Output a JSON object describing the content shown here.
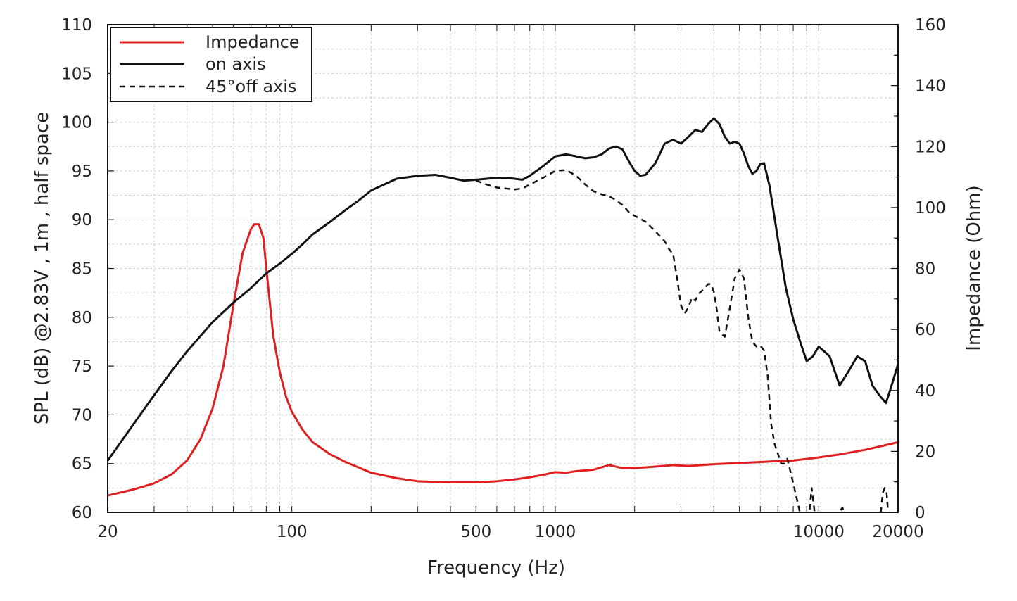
{
  "chart_data": {
    "type": "line",
    "xlabel": "Frequency (Hz)",
    "ylabel_left": "SPL (dB) @2.83V , 1m , half space",
    "ylabel_right": "Impedance (Ohm)",
    "x_scale": "log",
    "xlim": [
      20,
      20000
    ],
    "ylim_left": [
      60,
      110
    ],
    "ylim_right": [
      0,
      160
    ],
    "x_ticks": [
      20,
      100,
      500,
      1000,
      10000,
      20000
    ],
    "x_tick_labels": [
      "20",
      "100",
      "500",
      "1000",
      "10000",
      "20000"
    ],
    "y_ticks_left": [
      60,
      65,
      70,
      75,
      80,
      85,
      90,
      95,
      100,
      105,
      110
    ],
    "y_tick_labels_left": [
      "60",
      "65",
      "70",
      "75",
      "80",
      "85",
      "90",
      "95",
      "100",
      "105",
      "110"
    ],
    "y_ticks_right": [
      0,
      20,
      40,
      60,
      80,
      100,
      120,
      140,
      160
    ],
    "y_tick_labels_right": [
      "0",
      "20",
      "40",
      "60",
      "80",
      "100",
      "120",
      "140",
      "160"
    ],
    "grid": true,
    "legend_position": "top-left",
    "series": [
      {
        "name": "Impedance",
        "axis": "right",
        "color": "#e02020",
        "style": "solid",
        "x": [
          20,
          25,
          30,
          35,
          40,
          45,
          50,
          55,
          60,
          65,
          70,
          72,
          75,
          78,
          80,
          85,
          90,
          95,
          100,
          110,
          120,
          140,
          160,
          200,
          250,
          300,
          400,
          500,
          600,
          700,
          800,
          900,
          1000,
          1100,
          1200,
          1400,
          1600,
          1800,
          2000,
          2400,
          2800,
          3200,
          4000,
          5000,
          6000,
          7000,
          8000,
          10000,
          12000,
          15000,
          20000
        ],
        "y": [
          5.5,
          7.5,
          9.5,
          12.5,
          17,
          24,
          34,
          48,
          68,
          85,
          93,
          94.5,
          94.5,
          90,
          80,
          58,
          46,
          38,
          33,
          27,
          23,
          19,
          16.5,
          13,
          11.2,
          10.2,
          9.8,
          9.8,
          10.2,
          10.8,
          11.5,
          12.3,
          13.2,
          13,
          13.5,
          14,
          15.5,
          14.5,
          14.5,
          15,
          15.5,
          15.2,
          15.8,
          16.2,
          16.5,
          16.8,
          17,
          18,
          19,
          20.5,
          23
        ]
      },
      {
        "name": "on axis",
        "axis": "left",
        "color": "#111111",
        "style": "solid",
        "x": [
          20,
          25,
          30,
          35,
          40,
          50,
          60,
          70,
          80,
          90,
          100,
          110,
          120,
          140,
          160,
          180,
          200,
          250,
          300,
          350,
          400,
          450,
          500,
          550,
          600,
          650,
          700,
          750,
          800,
          900,
          1000,
          1100,
          1200,
          1300,
          1400,
          1500,
          1600,
          1700,
          1800,
          1900,
          2000,
          2100,
          2200,
          2400,
          2600,
          2800,
          3000,
          3200,
          3400,
          3600,
          3800,
          4000,
          4200,
          4400,
          4600,
          4800,
          5000,
          5200,
          5400,
          5600,
          5800,
          6000,
          6200,
          6500,
          7000,
          7500,
          8000,
          8500,
          9000,
          9500,
          10000,
          11000,
          12000,
          13000,
          14000,
          15000,
          16000,
          17000,
          18000,
          19000,
          20000
        ],
        "y": [
          65.3,
          69,
          72,
          74.5,
          76.5,
          79.5,
          81.5,
          83,
          84.5,
          85.5,
          86.5,
          87.5,
          88.5,
          89.8,
          91,
          92,
          93,
          94.2,
          94.5,
          94.6,
          94.3,
          94,
          94.1,
          94.2,
          94.3,
          94.3,
          94.2,
          94.1,
          94.5,
          95.5,
          96.5,
          96.7,
          96.5,
          96.3,
          96.4,
          96.7,
          97.3,
          97.5,
          97.2,
          96,
          95,
          94.5,
          94.6,
          95.8,
          97.8,
          98.2,
          97.8,
          98.5,
          99.2,
          99.0,
          99.8,
          100.4,
          99.8,
          98.5,
          97.8,
          98.0,
          97.8,
          96.8,
          95.5,
          94.7,
          95.0,
          95.7,
          95.8,
          93.5,
          88,
          83,
          79.8,
          77.5,
          75.5,
          76,
          77,
          76,
          73,
          74.5,
          76,
          75.5,
          73,
          72,
          71.2,
          73.2,
          75.2
        ]
      },
      {
        "name": "45°off axis",
        "axis": "left",
        "color": "#111111",
        "style": "dashed",
        "x": [
          500,
          550,
          600,
          650,
          700,
          750,
          800,
          900,
          1000,
          1100,
          1200,
          1300,
          1400,
          1500,
          1600,
          1700,
          1800,
          1900,
          2000,
          2200,
          2400,
          2600,
          2700,
          2800,
          2900,
          3000,
          3100,
          3200,
          3300,
          3400,
          3500,
          3600,
          3700,
          3800,
          3900,
          4000,
          4100,
          4200,
          4400,
          4600,
          4800,
          5000,
          5200,
          5400,
          5600,
          5800,
          6000,
          6200,
          6400,
          6600,
          6800,
          7000,
          7200,
          7400,
          7600,
          8000,
          9000,
          9200,
          9400,
          9600,
          9800,
          12000,
          12300,
          12600,
          17200,
          17500,
          17800,
          18100,
          18400,
          18700
        ],
        "y": [
          94.0,
          93.6,
          93.3,
          93.2,
          93.1,
          93.2,
          93.6,
          94.3,
          95.0,
          95.1,
          94.5,
          93.6,
          92.9,
          92.6,
          92.4,
          92.0,
          91.5,
          90.8,
          90.4,
          89.8,
          88.8,
          87.8,
          87.0,
          86.5,
          84.0,
          81.2,
          80.4,
          81.0,
          82.0,
          81.7,
          82.4,
          82.7,
          83.0,
          83.4,
          83.4,
          82.6,
          80.8,
          78.5,
          78.0,
          81.0,
          84.0,
          84.9,
          84.0,
          80.0,
          77.5,
          77.0,
          77.1,
          76.6,
          74.0,
          69.0,
          67.0,
          66.0,
          65.0,
          65.0,
          65.5,
          63.0,
          57.0,
          59.8,
          62.5,
          60.5,
          58.0,
          60.0,
          60.5,
          59.5,
          60.0,
          62.0,
          62.5,
          62.0,
          59.5,
          58.0
        ]
      }
    ]
  }
}
